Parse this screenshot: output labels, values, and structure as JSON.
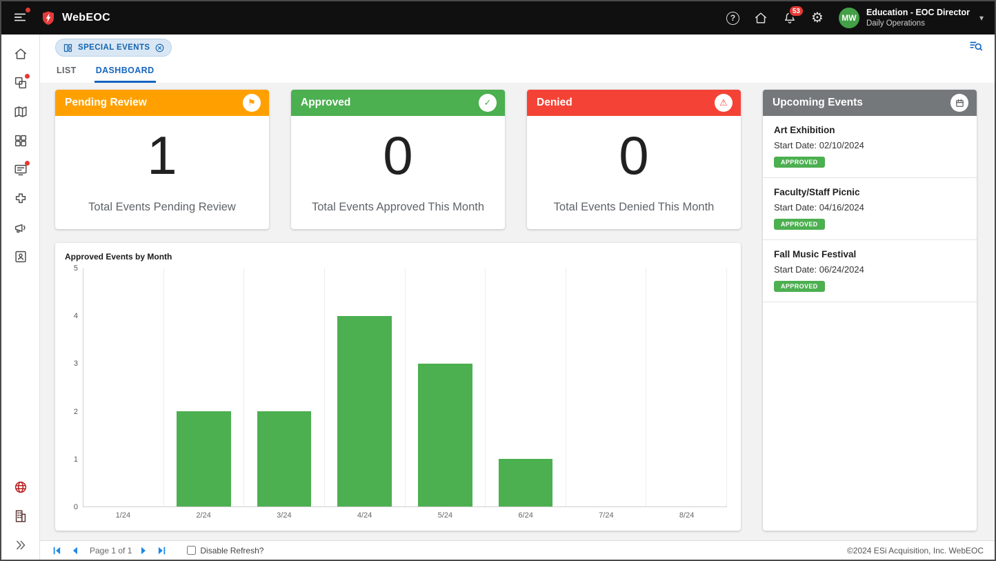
{
  "topbar": {
    "app_name": "WebEOC",
    "notification_count": "53",
    "user": {
      "avatar_initials": "MW",
      "role": "Education - EOC Director",
      "subtitle": "Daily Operations"
    }
  },
  "toolbar": {
    "chip_label": "SPECIAL EVENTS"
  },
  "tabs": [
    {
      "label": "LIST",
      "active": false
    },
    {
      "label": "DASHBOARD",
      "active": true
    }
  ],
  "stat_cards": [
    {
      "title": "Pending Review",
      "value": "1",
      "caption": "Total Events Pending Review",
      "color": "#FFA000",
      "icon": "flag-icon",
      "glyph": "⚑"
    },
    {
      "title": "Approved",
      "value": "0",
      "caption": "Total Events Approved This Month",
      "color": "#4CAF50",
      "icon": "check-icon",
      "glyph": "✓"
    },
    {
      "title": "Denied",
      "value": "0",
      "caption": "Total Events Denied This Month",
      "color": "#F44336",
      "icon": "warning-icon",
      "glyph": "⚠"
    }
  ],
  "chart_data": {
    "type": "bar",
    "title": "Approved Events by Month",
    "categories": [
      "1/24",
      "2/24",
      "3/24",
      "4/24",
      "5/24",
      "6/24",
      "7/24",
      "8/24"
    ],
    "values": [
      0,
      2,
      2,
      4,
      3,
      1,
      0,
      0
    ],
    "xlabel": "",
    "ylabel": "",
    "ylim": [
      0,
      5
    ],
    "yticks": [
      0,
      1,
      2,
      3,
      4,
      5
    ],
    "bar_color": "#4CAF50",
    "grid": "vertical",
    "legend_position": "none"
  },
  "upcoming": {
    "title": "Upcoming Events",
    "icon": "calendar-icon",
    "header_color": "#75787B",
    "status_color": "#4CAF50",
    "events": [
      {
        "name": "Art Exhibition",
        "start": "Start Date: 02/10/2024",
        "status": "APPROVED"
      },
      {
        "name": "Faculty/Staff Picnic",
        "start": "Start Date: 04/16/2024",
        "status": "APPROVED"
      },
      {
        "name": "Fall Music Festival",
        "start": "Start Date: 06/24/2024",
        "status": "APPROVED"
      }
    ]
  },
  "sidebar": {
    "top": [
      {
        "icon": "home-icon",
        "badge": false
      },
      {
        "icon": "boards-icon",
        "badge": true
      },
      {
        "icon": "maps-icon",
        "badge": false
      },
      {
        "icon": "apps-icon",
        "badge": false
      },
      {
        "icon": "messages-icon",
        "badge": true
      },
      {
        "icon": "plugins-icon",
        "badge": false
      },
      {
        "icon": "broadcast-icon",
        "badge": false
      },
      {
        "icon": "contacts-icon",
        "badge": false
      }
    ],
    "bottom": [
      {
        "icon": "globe-icon",
        "badge": false,
        "tint": "tint-red"
      },
      {
        "icon": "organization-icon",
        "badge": false,
        "tint": "tint-dark"
      },
      {
        "icon": "expand-icon",
        "badge": false,
        "tint": "tint-gray"
      }
    ]
  },
  "footer": {
    "page_label": "Page 1 of 1",
    "disable_refresh_label": "Disable Refresh?",
    "refresh_checked": false,
    "copyright": "©2024 ESi Acquisition, Inc. WebEOC"
  }
}
